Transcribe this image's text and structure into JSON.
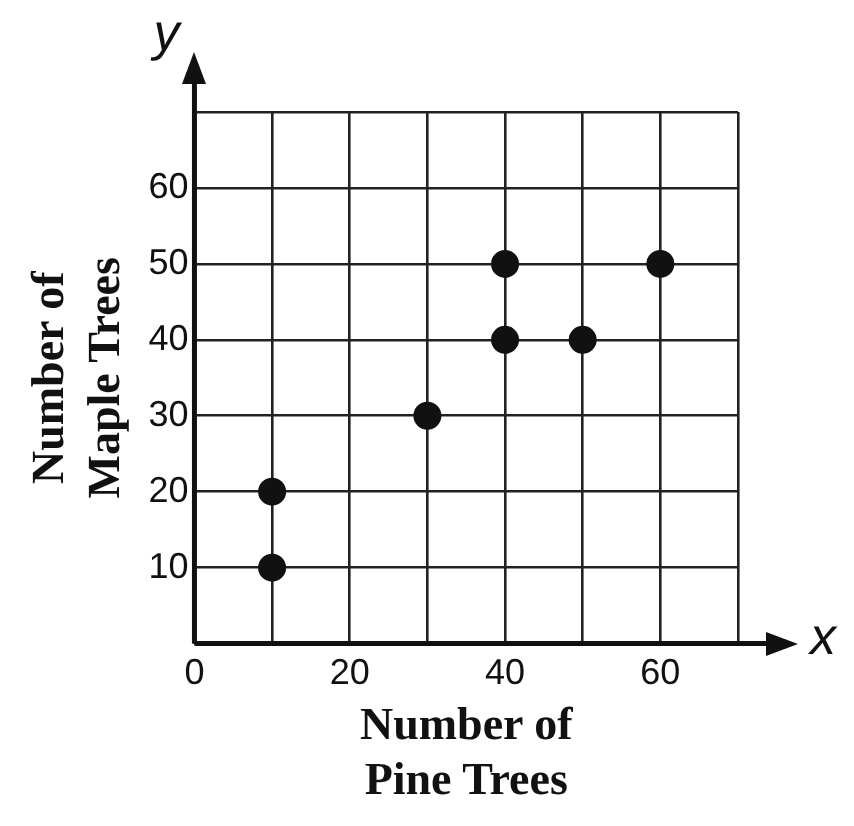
{
  "chart_data": {
    "type": "scatter",
    "xlabel": "Number of Pine Trees",
    "ylabel": "Number of Maple Trees",
    "annotations": [
      "y",
      "x"
    ],
    "x": [
      10,
      10,
      30,
      40,
      40,
      50,
      60
    ],
    "values": [
      10,
      20,
      30,
      40,
      50,
      40,
      50
    ],
    "color": "#111111",
    "marker": "circle",
    "grid": true,
    "xlim": [
      0,
      70
    ],
    "xticks": [
      0,
      {
        "value": 10,
        "label": null
      },
      20,
      {
        "value": 30,
        "label": null
      },
      40,
      {
        "value": 50,
        "label": null
      },
      60,
      {
        "value": 70,
        "label": null
      }
    ],
    "ylim": [
      0,
      70
    ],
    "yticks": [
      {
        "value": 0,
        "label": null
      },
      10,
      20,
      30,
      40,
      50,
      60,
      {
        "value": 70,
        "label": null
      }
    ]
  }
}
